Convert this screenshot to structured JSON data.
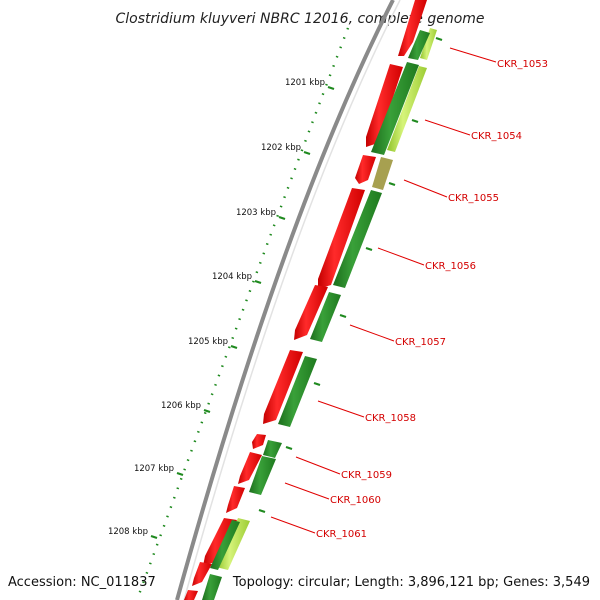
{
  "title": "Clostridium kluyveri NBRC 12016, complete genome",
  "footer": {
    "accession": "Accession: NC_011837",
    "summary": "Topology: circular; Length: 3,896,121 bp; Genes: 3,549"
  },
  "position_labels": [
    "1201 kbp",
    "1202 kbp",
    "1203 kbp",
    "1204 kbp",
    "1205 kbp",
    "1206 kbp",
    "1207 kbp",
    "1208 kbp"
  ],
  "gene_labels": [
    "CKR_1053",
    "CKR_1054",
    "CKR_1055",
    "CKR_1056",
    "CKR_1057",
    "CKR_1058",
    "CKR_1059",
    "CKR_1060",
    "CKR_1061"
  ],
  "colors": {
    "backbone": "#8a8a8a",
    "cds_red": "#ff0000",
    "cds_green": "#2a8a2a",
    "cds_lime": "#b6e04a",
    "ticks": "#1f8a1f",
    "label_red": "#d40000"
  }
}
